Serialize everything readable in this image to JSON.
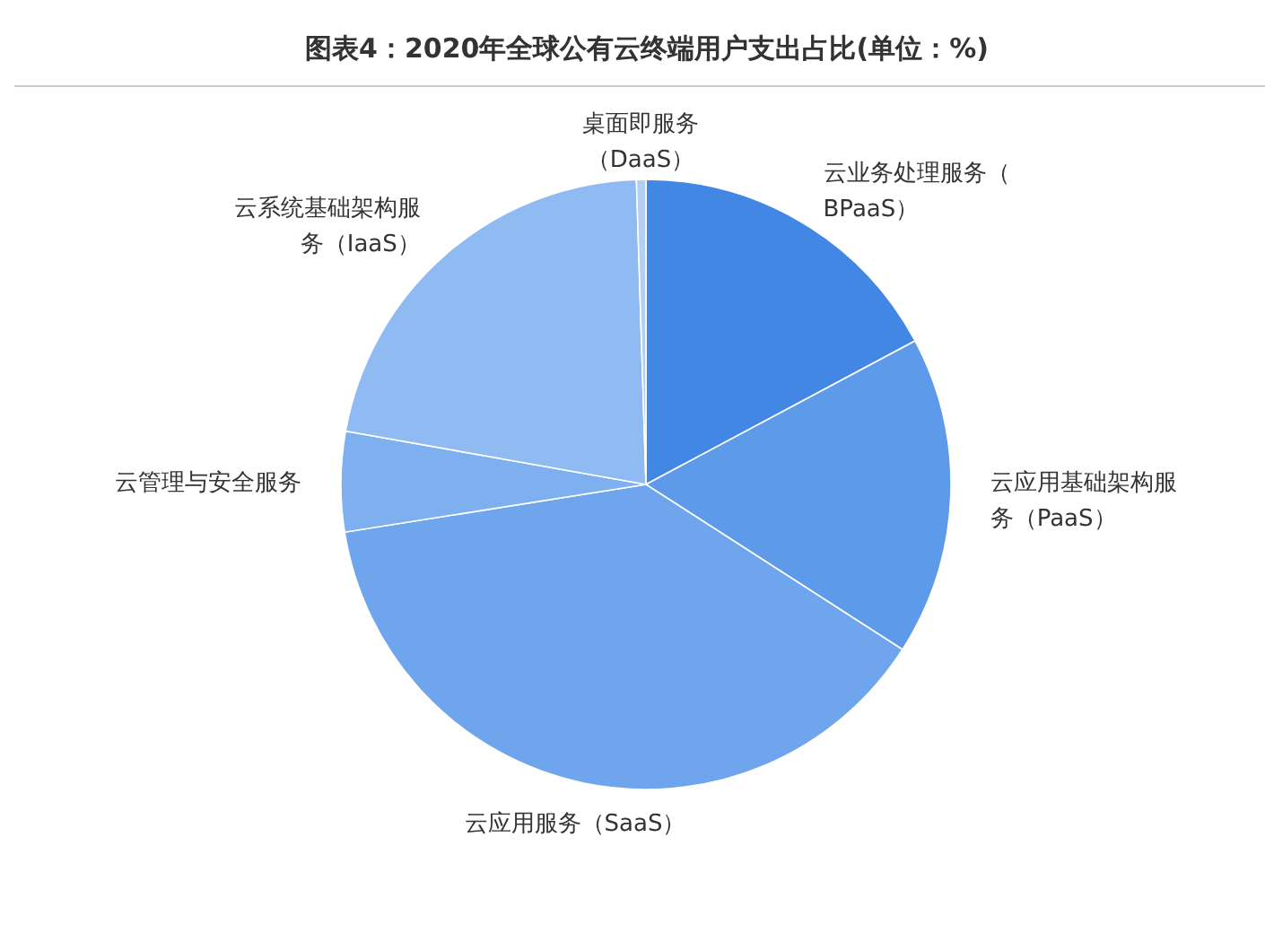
{
  "chart_data": {
    "type": "pie",
    "title": "图表4：2020年全球公有云终端用户支出占比(单位：%)",
    "categories": [
      "云业务处理服务（BPaaS）",
      "云应用基础架构服务（PaaS）",
      "云应用服务（SaaS）",
      "云管理与安全服务",
      "云系统基础架构服务（IaaS）",
      "桌面即服务（DaaS）"
    ],
    "values": [
      17.2,
      16.9,
      38.4,
      5.3,
      21.7,
      0.5
    ],
    "colors": [
      "#4287e4",
      "#5d9aea",
      "#6fa5ec",
      "#7eb0ef",
      "#8fbaf2",
      "#b3cff6"
    ]
  }
}
